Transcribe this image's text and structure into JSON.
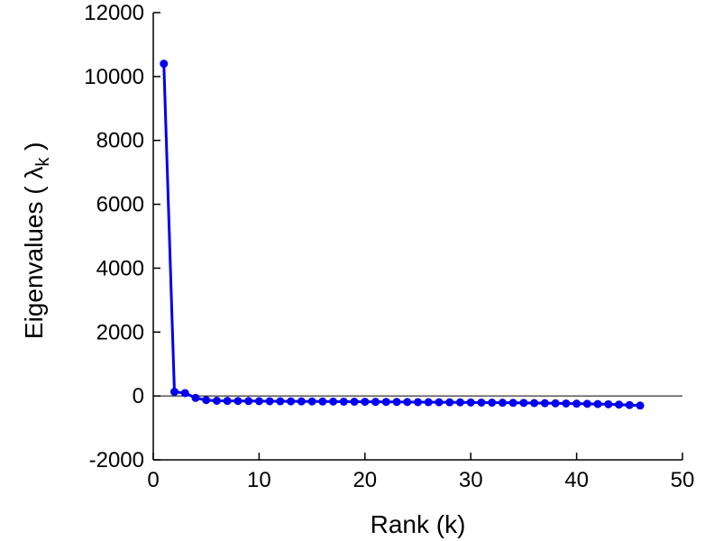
{
  "figure": {
    "background": "#ffffff",
    "text_color": "#000000",
    "axis_color": "#000000"
  },
  "chart_data": {
    "type": "line",
    "title": "",
    "xlabel": "Rank (k)",
    "ylabel_main": "Eigenvalues ( λ",
    "ylabel_sub": "k",
    "ylabel_end": " )",
    "xlim": [
      0,
      50
    ],
    "ylim": [
      -2000,
      12000
    ],
    "xticks": [
      0,
      10,
      20,
      30,
      40,
      50
    ],
    "yticks": [
      -2000,
      0,
      2000,
      4000,
      6000,
      8000,
      10000,
      12000
    ],
    "grid": false,
    "legend": null,
    "zero_line": true,
    "line_color": "#0000ee",
    "marker": "filled-circle",
    "marker_radius": 4.5,
    "line_width": 3,
    "x": [
      1,
      2,
      3,
      4,
      5,
      6,
      7,
      8,
      9,
      10,
      11,
      12,
      13,
      14,
      15,
      16,
      17,
      18,
      19,
      20,
      21,
      22,
      23,
      24,
      25,
      26,
      27,
      28,
      29,
      30,
      31,
      32,
      33,
      34,
      35,
      36,
      37,
      38,
      39,
      40,
      41,
      42,
      43,
      44,
      45,
      46
    ],
    "values": [
      10400,
      130,
      90,
      -60,
      -130,
      -150,
      -155,
      -158,
      -160,
      -162,
      -164,
      -166,
      -168,
      -170,
      -172,
      -174,
      -176,
      -178,
      -180,
      -182,
      -184,
      -186,
      -188,
      -190,
      -192,
      -194,
      -196,
      -198,
      -200,
      -203,
      -206,
      -209,
      -212,
      -215,
      -218,
      -222,
      -226,
      -230,
      -235,
      -240,
      -246,
      -252,
      -260,
      -270,
      -285,
      -300
    ]
  }
}
